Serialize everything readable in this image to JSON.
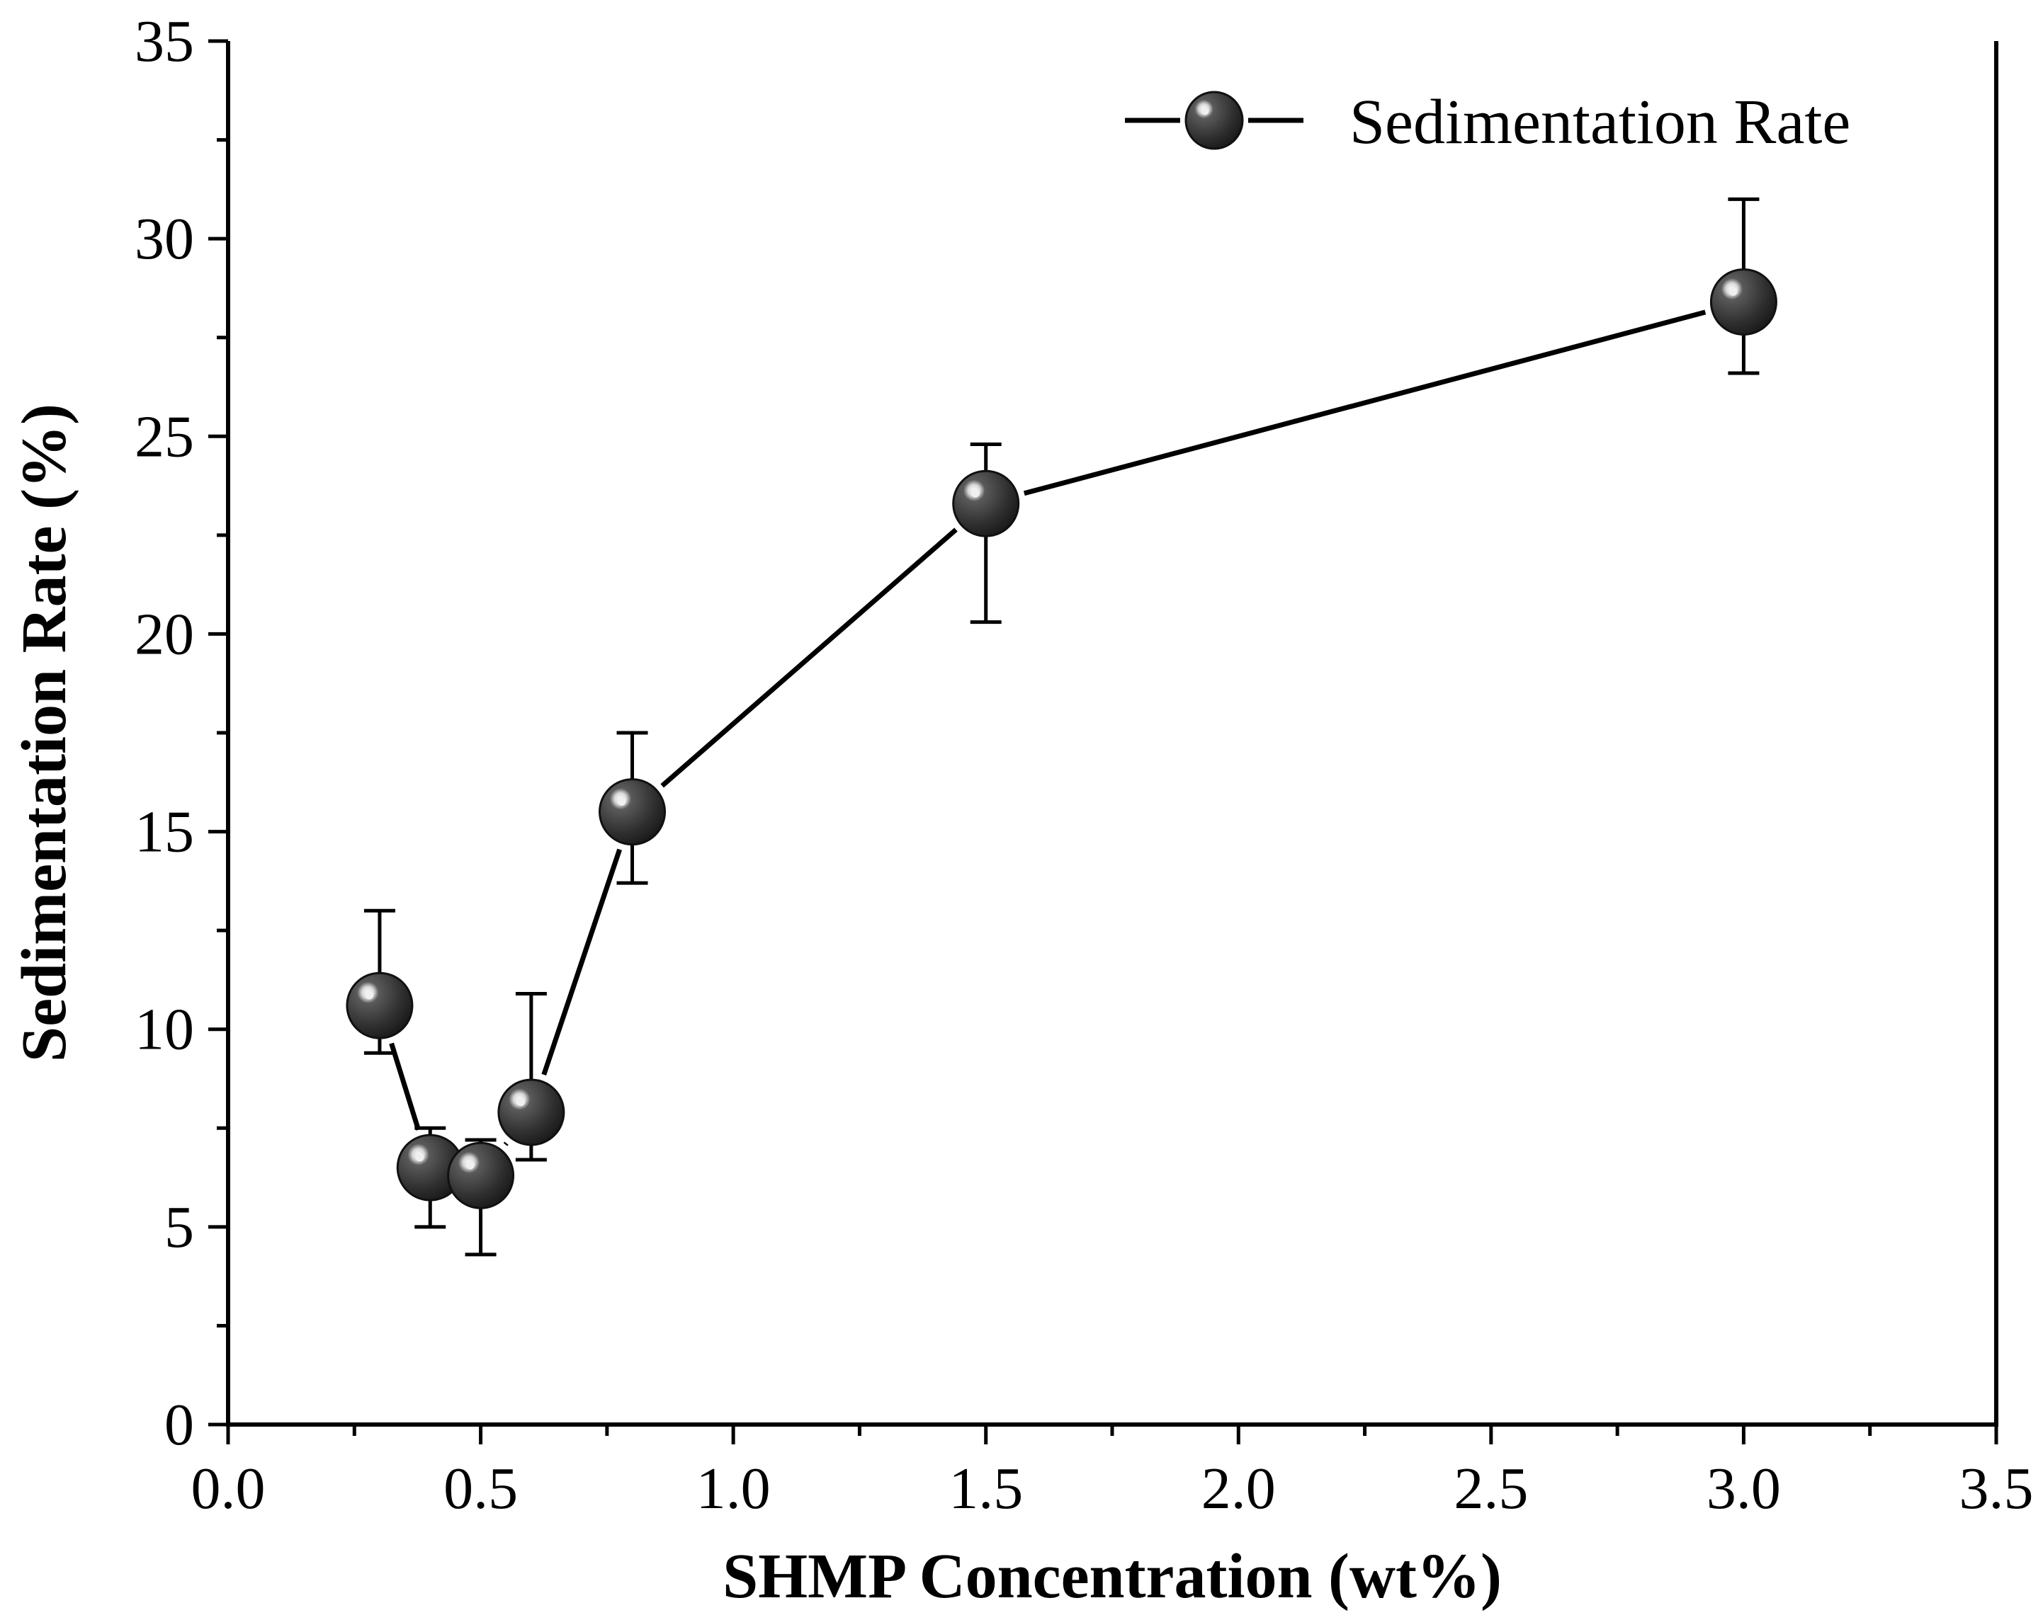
{
  "chart_data": {
    "type": "line",
    "title": "",
    "xlabel": "SHMP Concentration (wt%)",
    "ylabel": "Sedimentation Rate (%)",
    "xlim": [
      0.0,
      3.5
    ],
    "ylim": [
      0,
      35
    ],
    "x_ticks": [
      "0.0",
      "0.5",
      "1.0",
      "1.5",
      "2.0",
      "2.5",
      "3.0",
      "3.5"
    ],
    "y_ticks": [
      "0",
      "5",
      "10",
      "15",
      "20",
      "25",
      "30",
      "35"
    ],
    "legend_position": "top-right",
    "grid": false,
    "series": [
      {
        "name": "Sedimentation Rate",
        "marker": "sphere",
        "color": "#333333",
        "x": [
          0.3,
          0.4,
          0.5,
          0.6,
          0.8,
          1.5,
          3.0
        ],
        "y": [
          10.6,
          6.5,
          6.3,
          7.9,
          15.5,
          23.3,
          28.4
        ],
        "err_upper": [
          13.0,
          7.5,
          7.2,
          10.9,
          17.5,
          24.8,
          31.0
        ],
        "err_lower": [
          9.4,
          5.0,
          4.3,
          6.7,
          13.7,
          20.3,
          26.6
        ]
      }
    ]
  },
  "colors": {
    "axis": "#000000",
    "marker_fill": "#333333",
    "marker_highlight": "#f0f0f0"
  }
}
